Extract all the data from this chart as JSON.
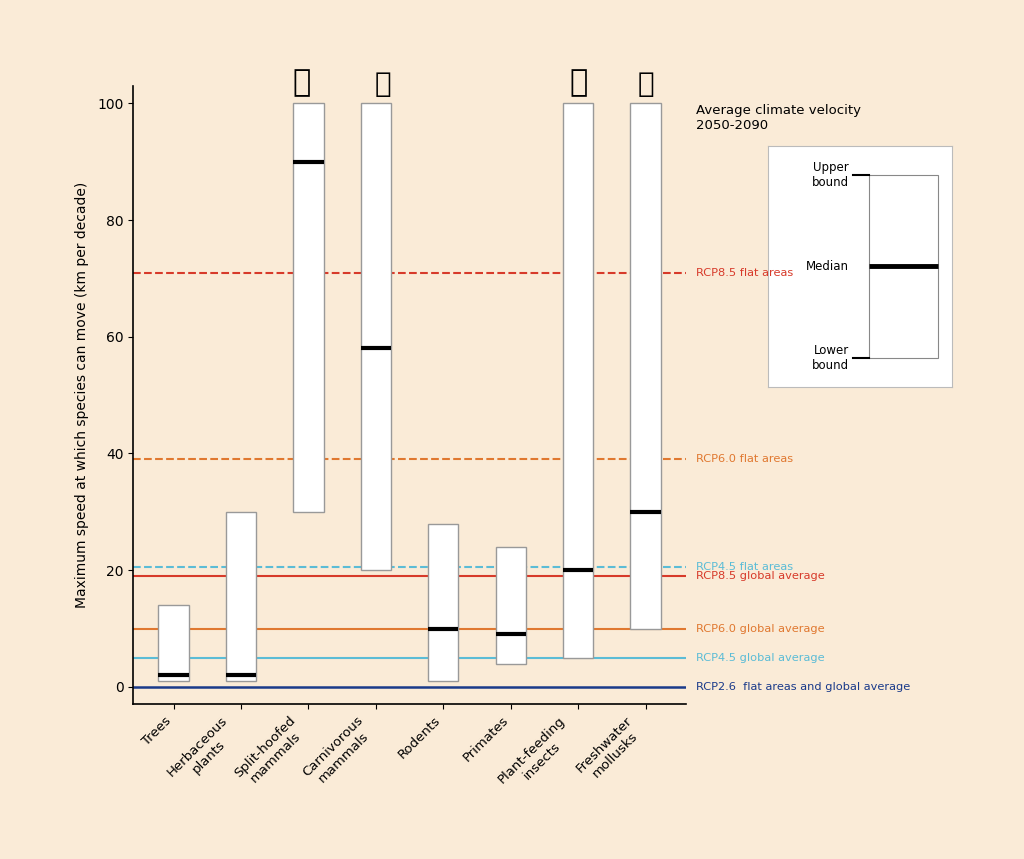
{
  "categories": [
    "Trees",
    "Herbaceous\nplants",
    "Split-hoofed\nmammals",
    "Carnivorous\nmammals",
    "Rodents",
    "Primates",
    "Plant-feeding\ninsects",
    "Freshwater\nmollusks"
  ],
  "boxes": [
    {
      "lower": 1,
      "median": 2,
      "upper": 14
    },
    {
      "lower": 1,
      "median": 2,
      "upper": 30
    },
    {
      "lower": 30,
      "median": 90,
      "upper": 100
    },
    {
      "lower": 20,
      "median": 58,
      "upper": 100
    },
    {
      "lower": 1,
      "median": 10,
      "upper": 28
    },
    {
      "lower": 4,
      "median": 9,
      "upper": 24
    },
    {
      "lower": 5,
      "median": 20,
      "upper": 100
    },
    {
      "lower": 10,
      "median": 30,
      "upper": 100
    }
  ],
  "hlines": [
    {
      "y": 71,
      "color": "#d73a2a",
      "linestyle": "--",
      "label": "RCP8.5 flat areas",
      "lw": 1.5
    },
    {
      "y": 39,
      "color": "#e07830",
      "linestyle": "--",
      "label": "RCP6.0 flat areas",
      "lw": 1.5
    },
    {
      "y": 20.5,
      "color": "#5bbcd6",
      "linestyle": "--",
      "label": "RCP4.5 flat areas",
      "lw": 1.5
    },
    {
      "y": 19,
      "color": "#d73a2a",
      "linestyle": "-",
      "label": "RCP8.5 global average",
      "lw": 1.5
    },
    {
      "y": 10,
      "color": "#e07830",
      "linestyle": "-",
      "label": "RCP6.0 global average",
      "lw": 1.5
    },
    {
      "y": 5,
      "color": "#5bbcd6",
      "linestyle": "-",
      "label": "RCP4.5 global average",
      "lw": 1.5
    },
    {
      "y": 0,
      "color": "#1a3a8a",
      "linestyle": "-",
      "label": "RCP2.6  flat areas and global average",
      "lw": 1.8
    }
  ],
  "rcp_labels": [
    {
      "y": 71,
      "color": "#d73a2a",
      "label": "RCP8.5 flat areas"
    },
    {
      "y": 39,
      "color": "#e07830",
      "label": "RCP6.0 flat areas"
    },
    {
      "y": 20.5,
      "color": "#5bbcd6",
      "label": "RCP4.5 flat areas"
    },
    {
      "y": 19,
      "color": "#d73a2a",
      "label": "RCP8.5 global average"
    },
    {
      "y": 10,
      "color": "#e07830",
      "label": "RCP6.0 global average"
    },
    {
      "y": 5,
      "color": "#5bbcd6",
      "label": "RCP4.5 global average"
    },
    {
      "y": 0,
      "color": "#1a3a8a",
      "label": "RCP2.6  flat areas and global average"
    }
  ],
  "ylim": [
    -3,
    103
  ],
  "yticks": [
    0,
    20,
    40,
    60,
    80,
    100
  ],
  "ylabel": "Maximum speed at which species can move (km per decade)",
  "background_color": "#faebd7",
  "box_facecolor": "white",
  "box_edgecolor": "#999999",
  "median_color": "black",
  "title_text": "Average climate velocity\n2050-2090",
  "bar_width": 0.45
}
